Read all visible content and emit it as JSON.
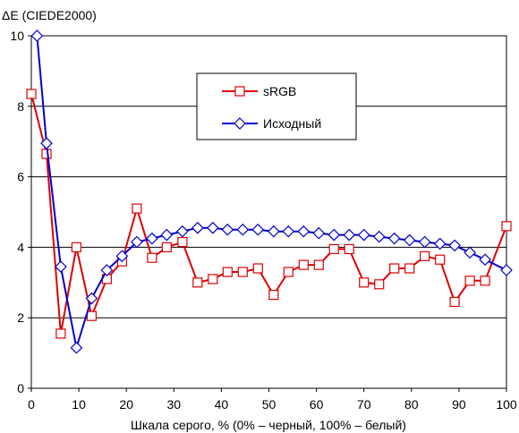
{
  "chart_data": {
    "type": "line",
    "ylabel": "ΔE (CIEDE2000)",
    "xlabel": "Шкала серого, % (0% – черный, 100% – белый)",
    "xlim": [
      0,
      100
    ],
    "ylim": [
      0,
      10
    ],
    "xticks": [
      "0",
      "10",
      "20",
      "30",
      "40",
      "50",
      "60",
      "70",
      "80",
      "90",
      "100"
    ],
    "yticks": [
      "0",
      "2",
      "4",
      "6",
      "8",
      "10"
    ],
    "grid": "horizontal",
    "legend": "top-center",
    "x": [
      0,
      3.2,
      6.3,
      9.5,
      12.6,
      15.9,
      19.1,
      22.3,
      25.4,
      28.6,
      31.8,
      35.0,
      38.2,
      41.3,
      44.5,
      47.7,
      51.0,
      54.1,
      57.3,
      60.5,
      63.6,
      66.8,
      70.0,
      73.2,
      76.4,
      79.6,
      82.7,
      85.9,
      89.1,
      92.3,
      95.5,
      98.6
    ],
    "series": [
      {
        "name": "sRGB",
        "color": "#dd0000",
        "marker": "square",
        "x": [
          0,
          3.2,
          6.2,
          9.5,
          12.7,
          15.9,
          19.1,
          22.2,
          25.4,
          28.5,
          31.8,
          35.0,
          38.2,
          41.3,
          44.5,
          47.7,
          51.0,
          54.1,
          57.3,
          60.5,
          63.7,
          66.9,
          70.0,
          73.2,
          76.4,
          79.6,
          82.8,
          86.0,
          89.1,
          92.3,
          95.5,
          100
        ],
        "values": [
          8.35,
          6.65,
          1.55,
          4.0,
          2.05,
          3.1,
          3.6,
          5.1,
          3.7,
          4.0,
          4.15,
          3.0,
          3.1,
          3.3,
          3.3,
          3.4,
          2.65,
          3.3,
          3.5,
          3.5,
          3.95,
          3.95,
          3.0,
          2.95,
          3.4,
          3.4,
          3.75,
          3.65,
          2.45,
          3.05,
          3.05,
          4.6
        ]
      },
      {
        "name": "Исходный",
        "color": "#0000cc",
        "marker": "diamond",
        "x": [
          1.2,
          3.2,
          6.2,
          9.5,
          12.7,
          15.9,
          19.1,
          22.2,
          25.4,
          28.5,
          31.8,
          35.0,
          38.2,
          41.3,
          44.5,
          47.7,
          51.0,
          54.1,
          57.3,
          60.5,
          63.7,
          66.9,
          70.0,
          73.2,
          76.4,
          79.6,
          82.8,
          86.0,
          89.1,
          92.3,
          95.5,
          100
        ],
        "values": [
          10.1,
          6.95,
          3.45,
          1.15,
          2.55,
          3.35,
          3.75,
          4.15,
          4.25,
          4.35,
          4.45,
          4.55,
          4.55,
          4.5,
          4.5,
          4.5,
          4.45,
          4.45,
          4.45,
          4.4,
          4.35,
          4.35,
          4.35,
          4.3,
          4.25,
          4.2,
          4.15,
          4.1,
          4.05,
          3.85,
          3.65,
          3.35
        ]
      }
    ]
  }
}
